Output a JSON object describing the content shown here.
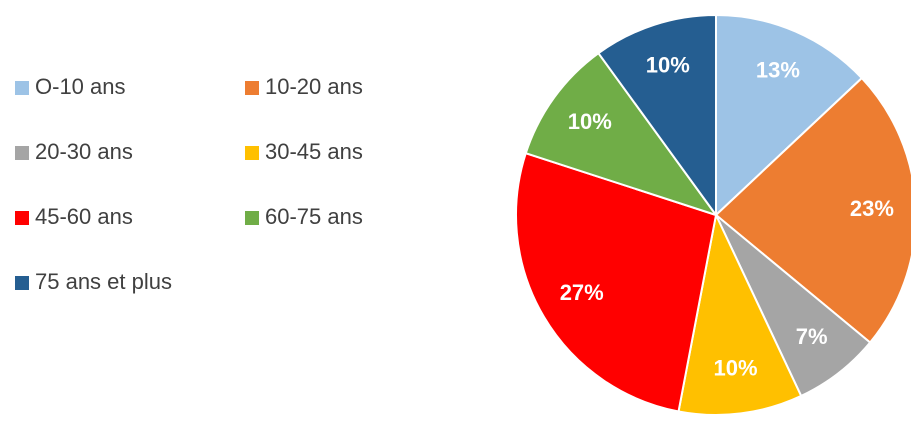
{
  "chart_data": {
    "type": "pie",
    "categories": [
      "O-10 ans",
      "10-20 ans",
      "20-30 ans",
      "30-45 ans",
      "45-60 ans",
      "60-75 ans",
      "75 ans et plus"
    ],
    "values": [
      13,
      23,
      7,
      10,
      27,
      10,
      10
    ],
    "value_labels": [
      "13%",
      "23%",
      "7%",
      "10%",
      "27%",
      "10%",
      "10%"
    ],
    "colors": [
      "#9dc3e6",
      "#ed7d31",
      "#a5a5a5",
      "#ffc000",
      "#ff0000",
      "#70ad47",
      "#255e91"
    ]
  }
}
